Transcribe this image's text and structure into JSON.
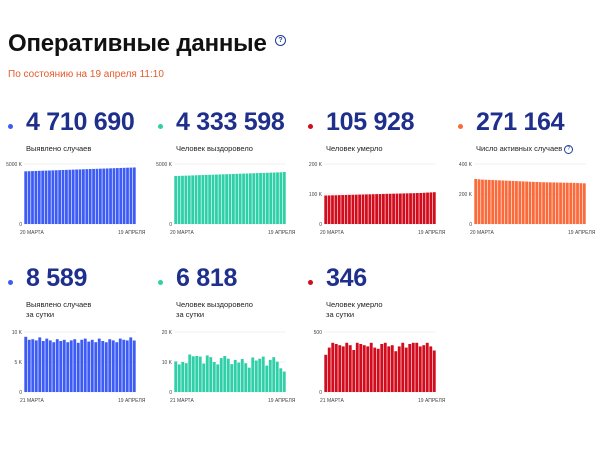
{
  "header": {
    "title": "Оперативные данные",
    "help_icon": "?",
    "subtitle": "По состоянию на 19 апреля 11:10"
  },
  "cards": [
    {
      "value": "4 710 690",
      "label": [
        "Выявлено случаев"
      ],
      "dot_color": "#3d5bf5",
      "bar_color": "#3d5bf5",
      "has_help_icon": false
    },
    {
      "value": "4 333 598",
      "label": [
        "Человек выздоровело"
      ],
      "dot_color": "#2fcfa8",
      "bar_color": "#2fcfa8",
      "has_help_icon": false
    },
    {
      "value": "105 928",
      "label": [
        "Человек умерло"
      ],
      "dot_color": "#d20c1c",
      "bar_color": "#d20c1c",
      "has_help_icon": false
    },
    {
      "value": "271 164",
      "label": [
        "Число активных случаев"
      ],
      "dot_color": "#fb6a3a",
      "bar_color": "#fb6a3a",
      "has_help_icon": true
    },
    {
      "value": "8 589",
      "label": [
        "Выявлено случаев",
        "за сутки"
      ],
      "dot_color": "#3d5bf5",
      "bar_color": "#3d5bf5",
      "has_help_icon": false
    },
    {
      "value": "6 818",
      "label": [
        "Человек выздоровело",
        "за сутки"
      ],
      "dot_color": "#2fcfa8",
      "bar_color": "#2fcfa8",
      "has_help_icon": false
    },
    {
      "value": "346",
      "label": [
        "Человек умерло",
        "за сутки"
      ],
      "dot_color": "#d20c1c",
      "bar_color": "#d20c1c",
      "has_help_icon": false
    }
  ],
  "chart_data": [
    {
      "type": "bar",
      "title": "",
      "y_ticks": [
        "0",
        "5000 K"
      ],
      "ylim": [
        0,
        5000000
      ],
      "x_labels": [
        "20 МАРТА",
        "19 АПРЕЛЯ"
      ],
      "values": [
        4390000,
        4400000,
        4410000,
        4420000,
        4430000,
        4440000,
        4450000,
        4460000,
        4470000,
        4480000,
        4490000,
        4500000,
        4510000,
        4520000,
        4530000,
        4540000,
        4550000,
        4560000,
        4570000,
        4580000,
        4590000,
        4600000,
        4610000,
        4620000,
        4630000,
        4640000,
        4650000,
        4660000,
        4670000,
        4680000,
        4690000,
        4700000,
        4710690
      ]
    },
    {
      "type": "bar",
      "title": "",
      "y_ticks": [
        "0",
        "5000 K"
      ],
      "ylim": [
        0,
        5000000
      ],
      "x_labels": [
        "20 МАРТА",
        "19 АПРЕЛЯ"
      ],
      "values": [
        4000000,
        4010000,
        4020000,
        4030000,
        4040000,
        4050000,
        4060000,
        4070000,
        4080000,
        4090000,
        4100000,
        4110000,
        4120000,
        4130000,
        4140000,
        4150000,
        4160000,
        4170000,
        4180000,
        4190000,
        4200000,
        4210000,
        4220000,
        4230000,
        4240000,
        4250000,
        4260000,
        4270000,
        4280000,
        4290000,
        4300000,
        4310000,
        4333598
      ]
    },
    {
      "type": "bar",
      "title": "",
      "y_ticks": [
        "0",
        "100 K",
        "200 K"
      ],
      "ylim": [
        0,
        200000
      ],
      "x_labels": [
        "20 МАРТА",
        "19 АПРЕЛЯ"
      ],
      "values": [
        95000,
        95300,
        95600,
        95900,
        96200,
        96500,
        96800,
        97100,
        97400,
        97700,
        98000,
        98300,
        98600,
        98900,
        99200,
        99500,
        99800,
        100100,
        100400,
        100700,
        101000,
        101300,
        101600,
        101900,
        102200,
        102500,
        102800,
        103100,
        103400,
        104100,
        104800,
        105300,
        105928
      ]
    },
    {
      "type": "bar",
      "title": "",
      "y_ticks": [
        "0",
        "200 K",
        "400 K"
      ],
      "ylim": [
        0,
        400000
      ],
      "x_labels": [
        "20 МАРТА",
        "19 АПРЕЛЯ"
      ],
      "values": [
        300000,
        298000,
        296000,
        295000,
        294000,
        293000,
        292000,
        291000,
        290000,
        289000,
        288000,
        287000,
        286000,
        285000,
        284000,
        283000,
        282000,
        281000,
        280000,
        279000,
        278500,
        278000,
        277500,
        277000,
        276500,
        276000,
        275500,
        275000,
        274500,
        274000,
        273000,
        272000,
        271164
      ]
    },
    {
      "type": "bar",
      "title": "",
      "y_ticks": [
        "0",
        "5 K",
        "10 K"
      ],
      "ylim": [
        0,
        10000
      ],
      "x_labels": [
        "21 МАРТА",
        "19 АПРЕЛЯ"
      ],
      "values": [
        9200,
        8700,
        8800,
        8600,
        9100,
        8500,
        8900,
        8600,
        8300,
        8800,
        8500,
        8700,
        8300,
        8600,
        8800,
        8200,
        8700,
        8900,
        8400,
        8700,
        8300,
        8900,
        8500,
        8300,
        8800,
        8600,
        8300,
        8900,
        8700,
        8600,
        9100,
        8589
      ]
    },
    {
      "type": "bar",
      "title": "",
      "y_ticks": [
        "0",
        "10 K",
        "20 K"
      ],
      "ylim": [
        0,
        20000
      ],
      "x_labels": [
        "21 МАРТА",
        "19 АПРЕЛЯ"
      ],
      "values": [
        10200,
        9200,
        10000,
        9600,
        12500,
        11900,
        12000,
        11800,
        9500,
        12200,
        11600,
        10000,
        9200,
        11300,
        12000,
        11100,
        9300,
        10700,
        9800,
        11000,
        9600,
        8100,
        11500,
        10500,
        11100,
        11800,
        8800,
        10700,
        11600,
        10100,
        7900,
        6818
      ]
    },
    {
      "type": "bar",
      "title": "",
      "y_ticks": [
        "0",
        "500"
      ],
      "ylim": [
        0,
        500
      ],
      "x_labels": [
        "21 МАРТА",
        "19 АПРЕЛЯ"
      ],
      "values": [
        310,
        370,
        410,
        400,
        390,
        380,
        410,
        390,
        350,
        410,
        400,
        390,
        380,
        410,
        370,
        360,
        400,
        410,
        380,
        390,
        340,
        380,
        410,
        370,
        400,
        410,
        410,
        380,
        390,
        410,
        380,
        346
      ]
    }
  ]
}
